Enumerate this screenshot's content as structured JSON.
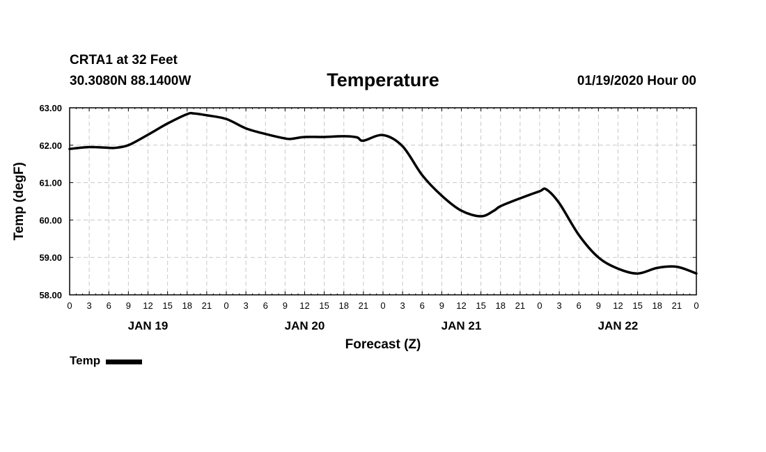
{
  "header": {
    "station": "CRTA1 at 32 Feet",
    "coordinates": "30.3080N 88.1400W",
    "date": "01/19/2020 Hour 00"
  },
  "colors": {
    "line": "#000000",
    "grid": "#c8c8c8",
    "frame": "#000000",
    "background": "#ffffff"
  },
  "chart_data": {
    "type": "line",
    "title": "Temperature",
    "xlabel": "Forecast (Z)",
    "ylabel": "Temp (degF)",
    "xlim": [
      0,
      96
    ],
    "ylim": [
      58.0,
      63.0
    ],
    "y_ticks": [
      58.0,
      59.0,
      60.0,
      61.0,
      62.0,
      63.0
    ],
    "y_tick_labels": [
      "58.00",
      "59.00",
      "60.00",
      "61.00",
      "62.00",
      "63.00"
    ],
    "x_ticks": [
      0,
      3,
      6,
      9,
      12,
      15,
      18,
      21,
      24,
      27,
      30,
      33,
      36,
      39,
      42,
      45,
      48,
      51,
      54,
      57,
      60,
      63,
      66,
      69,
      72,
      75,
      78,
      81,
      84,
      87,
      90,
      93,
      96
    ],
    "x_tick_labels": [
      "0",
      "3",
      "6",
      "9",
      "12",
      "15",
      "18",
      "21",
      "0",
      "3",
      "6",
      "9",
      "12",
      "15",
      "18",
      "21",
      "0",
      "3",
      "6",
      "9",
      "12",
      "15",
      "18",
      "21",
      "0",
      "3",
      "6",
      "9",
      "12",
      "15",
      "18",
      "21",
      "0"
    ],
    "date_labels": [
      {
        "x": 12,
        "label": "JAN 19"
      },
      {
        "x": 36,
        "label": "JAN 20"
      },
      {
        "x": 60,
        "label": "JAN 21"
      },
      {
        "x": 84,
        "label": "JAN 22"
      }
    ],
    "grid": true,
    "legend_position": "bottom-left",
    "series": [
      {
        "name": "Temp",
        "x": [
          0,
          3,
          6,
          7,
          9,
          12,
          15,
          18,
          19,
          21,
          24,
          27,
          30,
          33,
          34,
          36,
          39,
          42,
          44,
          45,
          48,
          51,
          54,
          57,
          60,
          63,
          65,
          66,
          69,
          72,
          73,
          75,
          78,
          81,
          84,
          87,
          90,
          93,
          96
        ],
        "y": [
          61.9,
          61.95,
          61.93,
          61.93,
          62.0,
          62.28,
          62.58,
          62.83,
          62.85,
          62.8,
          62.7,
          62.45,
          62.3,
          62.18,
          62.17,
          62.22,
          62.22,
          62.24,
          62.21,
          62.12,
          62.27,
          61.97,
          61.2,
          60.65,
          60.25,
          60.1,
          60.25,
          60.37,
          60.58,
          60.77,
          60.82,
          60.45,
          59.6,
          59.0,
          58.7,
          58.57,
          58.72,
          58.75,
          58.57
        ]
      }
    ]
  }
}
